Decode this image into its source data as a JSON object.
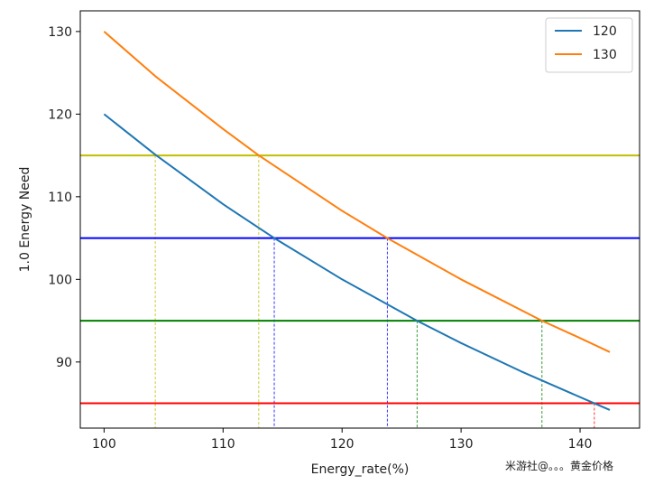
{
  "chart_data": {
    "type": "line",
    "xlabel": "Energy_rate(%)",
    "ylabel": "1.0 Energy Need",
    "xlim": [
      98,
      145
    ],
    "ylim": [
      82,
      132.5
    ],
    "x_ticks": [
      100,
      110,
      120,
      130,
      140
    ],
    "y_ticks": [
      90,
      100,
      110,
      120,
      130
    ],
    "grid": false,
    "legend_position": "top-right",
    "series": [
      {
        "name": "120",
        "color": "#1f77b4",
        "x": [
          100,
          104.3,
          110,
          114.3,
          120,
          126.3,
          130,
          135,
          141.2,
          142.5
        ],
        "y": [
          120,
          115.1,
          109.1,
          105.0,
          100.0,
          95.0,
          92.3,
          88.9,
          85.0,
          84.2
        ]
      },
      {
        "name": "130",
        "color": "#ff7f0e",
        "x": [
          100,
          104.3,
          110,
          113.0,
          120,
          123.8,
          130,
          136.8,
          140,
          142.5
        ],
        "y": [
          130,
          124.6,
          118.2,
          115.0,
          108.3,
          105.0,
          100.0,
          95.0,
          92.9,
          91.2
        ]
      }
    ],
    "reference_lines": [
      {
        "y": 115,
        "color": "#bfbf00",
        "crossings": [
          {
            "x": 104.3,
            "color": "#bfbf00"
          },
          {
            "x": 113.0,
            "color": "#bfbf00"
          }
        ]
      },
      {
        "y": 105,
        "color": "#0000ff",
        "crossings": [
          {
            "x": 114.3,
            "color": "#0000ff"
          },
          {
            "x": 123.8,
            "color": "#0000ff"
          }
        ]
      },
      {
        "y": 95,
        "color": "#008000",
        "crossings": [
          {
            "x": 126.3,
            "color": "#008000"
          },
          {
            "x": 136.8,
            "color": "#008000"
          }
        ]
      },
      {
        "y": 85,
        "color": "#ff0000",
        "crossings": [
          {
            "x": 141.2,
            "color": "#ff0000"
          }
        ]
      }
    ]
  },
  "watermark": "米游社@。。。黄金价格"
}
